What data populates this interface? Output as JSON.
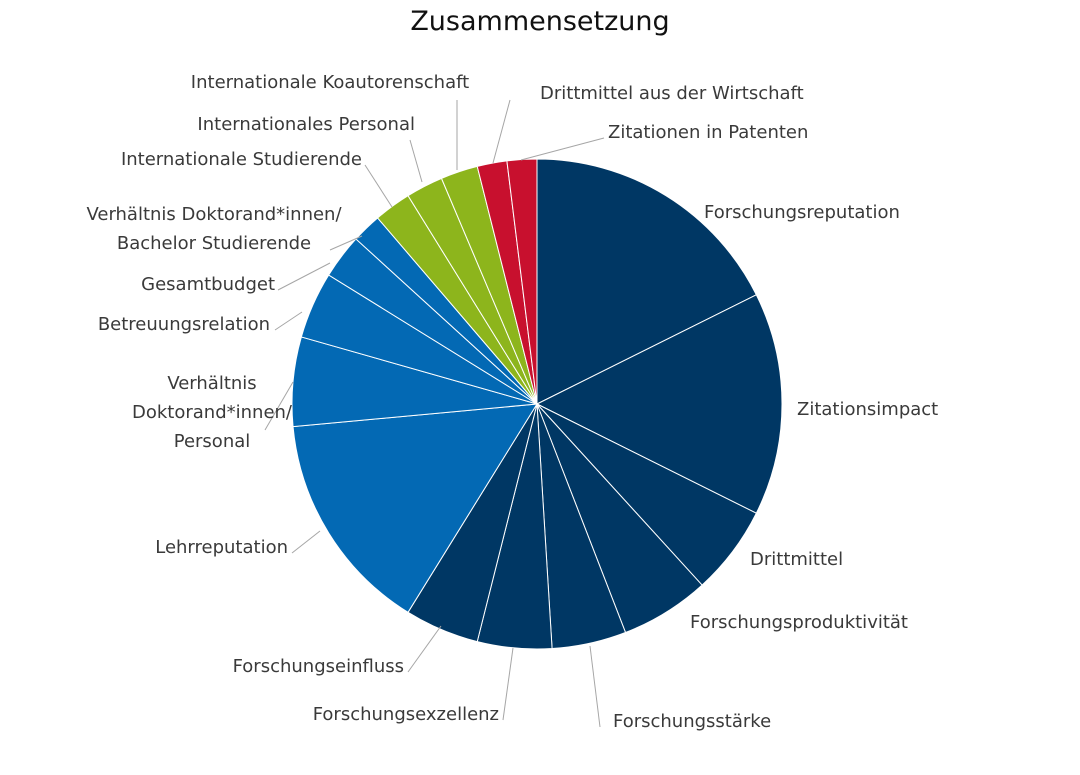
{
  "chart_data": {
    "type": "pie",
    "title": "Zusammensetzung",
    "start_angle_deg": 0,
    "direction": "clockwise",
    "slices": [
      {
        "label": "Forschungsreputation",
        "value": 18,
        "color": "#003764"
      },
      {
        "label": "Zitationsimpact",
        "value": 15,
        "color": "#003764"
      },
      {
        "label": "Drittmittel",
        "value": 6,
        "color": "#003764"
      },
      {
        "label": "Forschungsproduktivität",
        "value": 6,
        "color": "#003764"
      },
      {
        "label": "Forschungsstärke",
        "value": 5,
        "color": "#003764"
      },
      {
        "label": "Forschungsexzellenz",
        "value": 5,
        "color": "#003764"
      },
      {
        "label": "Forschungseinfluss",
        "value": 5,
        "color": "#003764"
      },
      {
        "label": "Lehrreputation",
        "value": 15,
        "color": "#0369b4"
      },
      {
        "label": "Verhältnis Doktorand*innen/ Personal",
        "value": 6,
        "color": "#0369b4"
      },
      {
        "label": "Betreuungsrelation",
        "value": 4.5,
        "color": "#0369b4"
      },
      {
        "label": "Gesamtbudget",
        "value": 3,
        "color": "#0369b4"
      },
      {
        "label": "Verhältnis Doktorand*innen/ Bachelor Studierende",
        "value": 2,
        "color": "#0369b4"
      },
      {
        "label": "Internationale Studierende",
        "value": 2.5,
        "color": "#8db51c"
      },
      {
        "label": "Internationales Personal",
        "value": 2.5,
        "color": "#8db51c"
      },
      {
        "label": "Internationale Koautorenschaft",
        "value": 2.5,
        "color": "#8db51c"
      },
      {
        "label": "Drittmittel aus der Wirtschaft",
        "value": 2,
        "color": "#c8102e"
      },
      {
        "label": "Zitationen in Patenten",
        "value": 2,
        "color": "#c8102e"
      }
    ]
  }
}
